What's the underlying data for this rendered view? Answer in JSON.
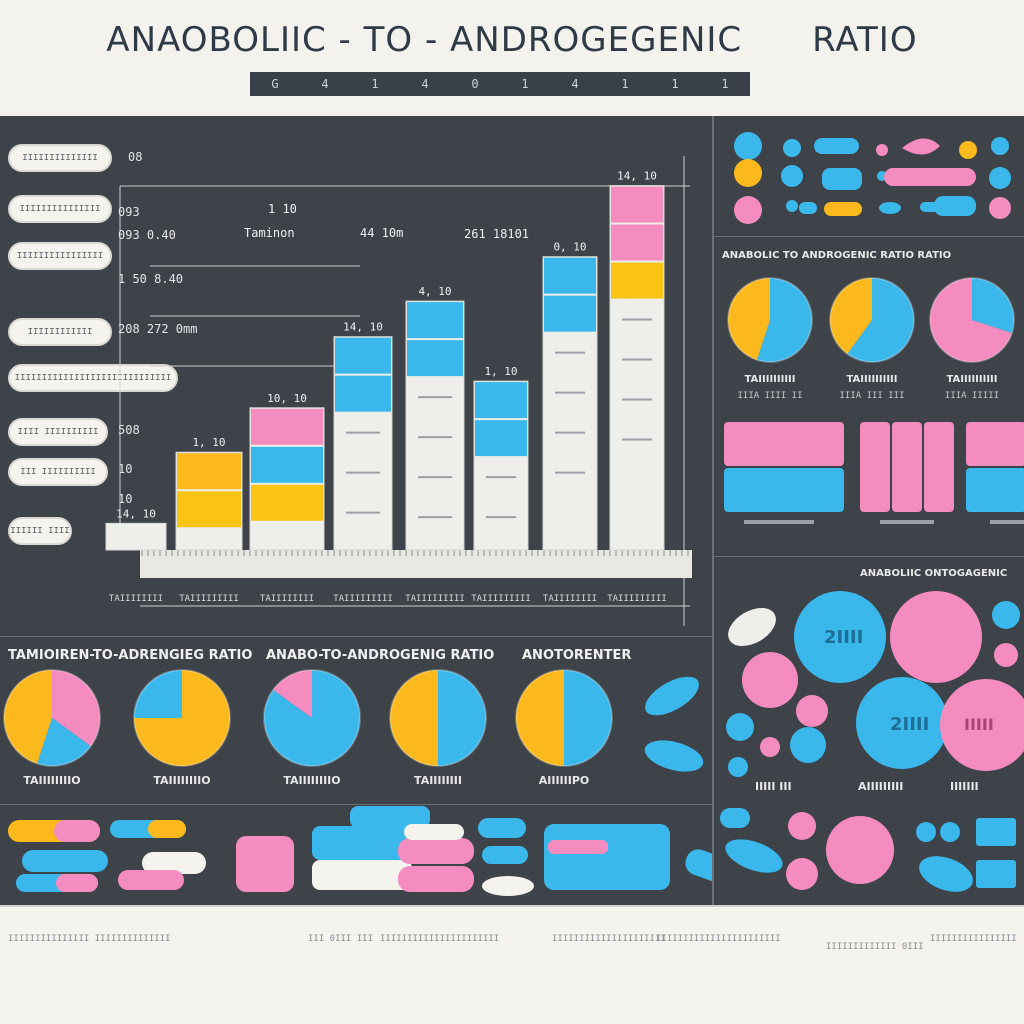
{
  "title_left": "ANAOBOLIIC - TO - ANDROGEGENIC",
  "title_right": "RATIO",
  "strip_glyphs": [
    "G",
    "4",
    "1",
    "4",
    "0",
    "1",
    "4",
    "1",
    "1",
    "1"
  ],
  "side_pills": [
    "IIIIIIIIIIIIII",
    "IIIIIIIIIIIIIII",
    "IIIIIIIIIIIIIIII",
    "IIIIIIIIIIII",
    "IIIIIIIIIIIIIIIIIIIIIIIIIIIII",
    "IIII IIIIIIIIII",
    "III IIIIIIIIII",
    "IIIIII IIII"
  ],
  "y_texts": [
    "08",
    "093",
    "093 0.40",
    "1 50 8.40",
    "208 272 0mm",
    "508",
    "10",
    "10",
    "1 50 8.40",
    "1 50 8.40",
    "1 50 8.40"
  ],
  "chart_data": {
    "type": "bar",
    "title": "",
    "categories": [
      "TAIIIIIIIII",
      "TAIIIIIIII",
      "TAIIIIIIIII",
      "TAIIIIIIIII",
      "TAIIIIIIIII",
      "TAIIIIIIII",
      "TAIIIIIIIII",
      "TAIIIIIIII"
    ],
    "values": [
      1.1,
      1.6,
      2.4,
      2.8,
      1.9,
      3.3,
      4.1,
      0.3
    ],
    "top_labels": [
      "1, 10",
      "10, 10",
      "14, 10",
      "4, 10",
      "1, 10",
      "0, 10",
      "14, 10",
      "14, 10"
    ],
    "segments": [
      [
        "#fbb91d",
        "#f9c414"
      ],
      [
        "#f58cbf",
        "#3ab8ec",
        "#f9c414"
      ],
      [
        "#3ab8ec",
        "#3ab8ec"
      ],
      [
        "#3ab8ec",
        "#3ab8ec"
      ],
      [
        "#3ab8ec",
        "#3ab8ec"
      ],
      [
        "#3ab8ec",
        "#3ab8ec"
      ],
      [
        "#f58cbf",
        "#f58cbf",
        "#f9c414"
      ],
      []
    ],
    "annotations": [
      "1 10",
      "Taminon",
      "44 10m",
      "261 18101"
    ],
    "ylim": [
      0,
      4.5
    ]
  },
  "right_title": "ANABOLIC TO ANDROGENIC RATIO RATIO",
  "right_pies": [
    {
      "label": "TAIIIIIIIIII",
      "sub": "IIIA IIII II",
      "slices": [
        0.55,
        0.45
      ],
      "colors": [
        "#3ab8ec",
        "#fbb91d"
      ]
    },
    {
      "label": "TAIIIIIIIIII",
      "sub": "IIIA III III",
      "slices": [
        0.6,
        0.4
      ],
      "colors": [
        "#3ab8ec",
        "#fbb91d"
      ]
    },
    {
      "label": "TAIIIIIIIIII",
      "sub": "IIIA IIIII",
      "slices": [
        0.3,
        0.7
      ],
      "colors": [
        "#3ab8ec",
        "#f58cbf"
      ]
    }
  ],
  "bottom_subtitles": [
    "TAMIOIREN-TO-ADRENGIEG RATIO",
    "ANABO-TO-ANDROGENIG RATIO",
    "ANOTORENTER"
  ],
  "bottom_pies": [
    {
      "label": "TAIIIIIIIIO",
      "slices": [
        0.35,
        0.2,
        0.45
      ],
      "colors": [
        "#f58cbf",
        "#3ab8ec",
        "#fbb91d"
      ]
    },
    {
      "label": "TAIIIIIIIIO",
      "slices": [
        0.75,
        0.25
      ],
      "colors": [
        "#fbb91d",
        "#3ab8ec"
      ]
    },
    {
      "label": "TAIIIIIIIIO",
      "slices": [
        0.85,
        0.15
      ],
      "colors": [
        "#3ab8ec",
        "#f58cbf"
      ]
    },
    {
      "label": "TAIIIIIIII",
      "slices": [
        0.5,
        0.5
      ],
      "colors": [
        "#3ab8ec",
        "#fbb91d"
      ]
    },
    {
      "label": "AIIIIIIPO",
      "slices": [
        0.5,
        0.5
      ],
      "colors": [
        "#3ab8ec",
        "#fbb91d"
      ]
    }
  ],
  "right_mid_title": "ANABOLIIC ONTOGAGENIC",
  "right_tablet_labels": [
    "IIIII III",
    "AIIIIIIIII",
    "IIIIIII"
  ],
  "tablet_text": [
    "2IIII",
    "2IIII",
    "IIIII"
  ],
  "footer_texts": [
    "IIIIIIIIIIIIIII IIIIIIIIIIIIII",
    "III 0III III",
    "IIIIIIIIIIIIIIIIIIIIII",
    "IIIIIIIIIIIIIIIIIIIII",
    "IIIIIIIIIIIIIIIIIIIIIII",
    "IIIIIIIIIIIII 0III",
    "IIIIIIIIIIIIIIII"
  ]
}
